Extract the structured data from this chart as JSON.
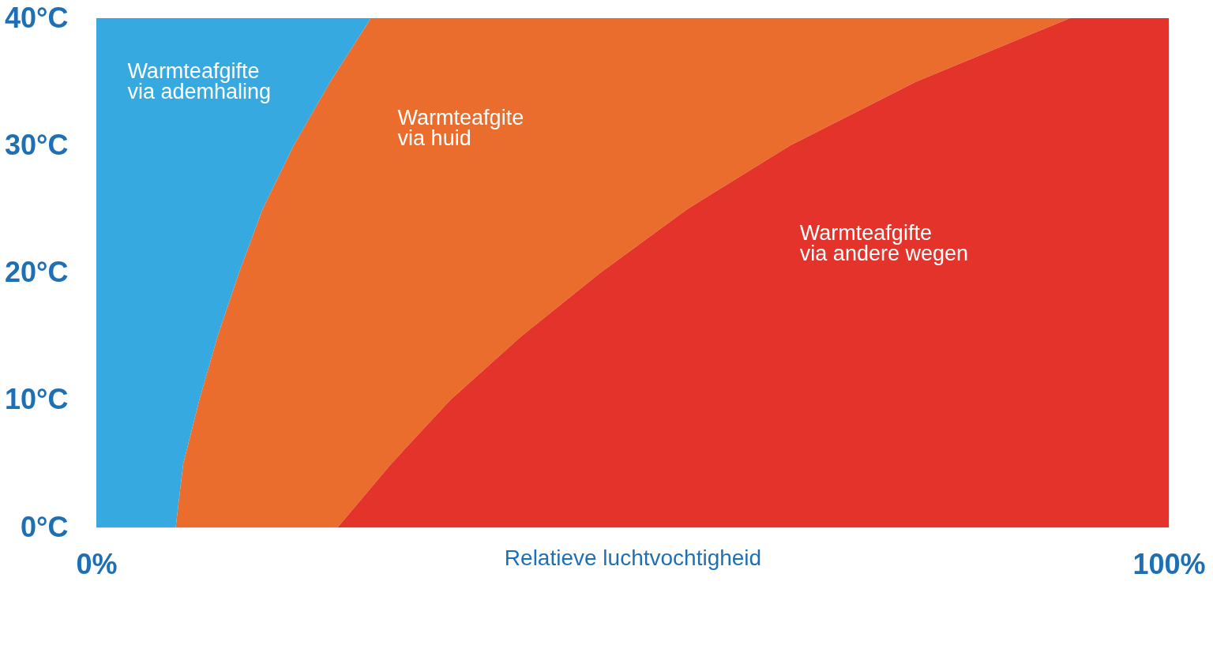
{
  "chart_data": {
    "type": "area",
    "stacked": true,
    "orientation": "horizontal",
    "xlabel": "Relatieve luchtvochtigheid",
    "x": [
      0,
      5,
      10,
      15,
      20,
      25,
      30,
      35,
      40
    ],
    "series": [
      {
        "name": "Warmteafgifte\nvia ademhaling",
        "color": "#36a9e1",
        "values": [
          7.4,
          8.1,
          9.6,
          11.3,
          13.3,
          15.5,
          18.4,
          21.8,
          25.6
        ]
      },
      {
        "name": "Warmteafgite\nvia huid",
        "color": "#ea6d2e",
        "values": [
          15.1,
          19.4,
          23.4,
          28.3,
          33.7,
          39.6,
          46.3,
          54.6,
          65.2
        ]
      },
      {
        "name": "Warmteafgifte\nvia andere wegen",
        "color": "#e3332a",
        "values": [
          77.5,
          72.5,
          67.0,
          60.4,
          53.0,
          44.9,
          35.3,
          23.6,
          9.2
        ]
      }
    ],
    "xlim": [
      0,
      100
    ],
    "xticks": [
      {
        "value": 0,
        "label": "0%"
      },
      {
        "value": 100,
        "label": "100%"
      }
    ],
    "ylim": [
      0,
      40
    ],
    "yticks": [
      {
        "value": 0,
        "label": "0°C"
      },
      {
        "value": 10,
        "label": "10°C"
      },
      {
        "value": 20,
        "label": "20°C"
      },
      {
        "value": 30,
        "label": "30°C"
      },
      {
        "value": 40,
        "label": "40°C"
      }
    ]
  }
}
